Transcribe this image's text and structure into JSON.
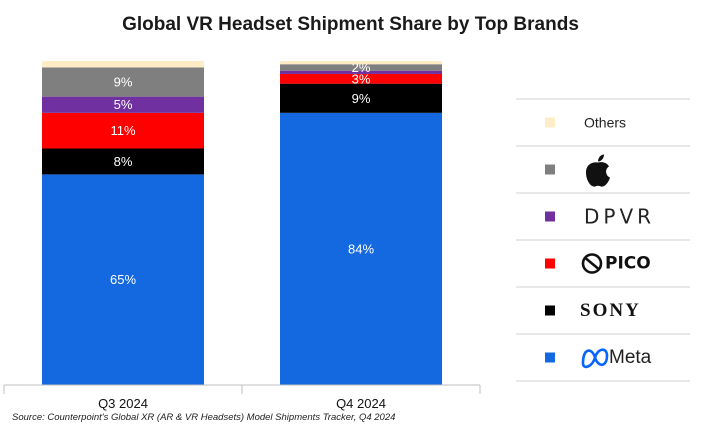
{
  "chart_data": {
    "type": "bar",
    "stacked": true,
    "title": "Global VR Headset Shipment Share by Top Brands",
    "categories": [
      "Q3 2024",
      "Q4 2024"
    ],
    "series": [
      {
        "name": "Meta",
        "color": "#1569e0",
        "values": [
          65,
          84
        ],
        "labels": [
          "65%",
          "84%"
        ]
      },
      {
        "name": "SONY",
        "color": "#000000",
        "values": [
          8,
          9
        ],
        "labels": [
          "8%",
          "9%"
        ]
      },
      {
        "name": "PICO",
        "color": "#ff0000",
        "values": [
          11,
          3
        ],
        "labels": [
          "11%",
          "3%"
        ]
      },
      {
        "name": "DPVR",
        "color": "#7030a0",
        "values": [
          5,
          1
        ],
        "labels": [
          "5%",
          ""
        ]
      },
      {
        "name": "Apple",
        "color": "#7f7f7f",
        "values": [
          9,
          2
        ],
        "labels": [
          "9%",
          "2%"
        ]
      },
      {
        "name": "Others",
        "color": "#fdecc6",
        "values": [
          2,
          1
        ],
        "labels": [
          "",
          ""
        ]
      }
    ],
    "legend": {
      "position": "right",
      "order_top_to_bottom": [
        "Others",
        "Apple",
        "DPVR",
        "PICO",
        "SONY",
        "Meta"
      ],
      "entries": {
        "Others": {
          "text": "Others",
          "icon": "text"
        },
        "Apple": {
          "text": "",
          "icon": "apple-logo-icon"
        },
        "DPVR": {
          "text": "DPVR",
          "icon": "dpvr-logo-text"
        },
        "PICO": {
          "text": "PICO",
          "icon": "pico-logo-icon"
        },
        "SONY": {
          "text": "SONY",
          "icon": "sony-logo-text"
        },
        "Meta": {
          "text": "Meta",
          "icon": "meta-logo-icon"
        }
      }
    },
    "ylim": [
      0,
      100
    ],
    "grid": false,
    "xlabel": "",
    "ylabel": ""
  },
  "source": "Source: Counterpoint's Global XR (AR & VR Headsets) Model Shipments Tracker, Q4 2024"
}
